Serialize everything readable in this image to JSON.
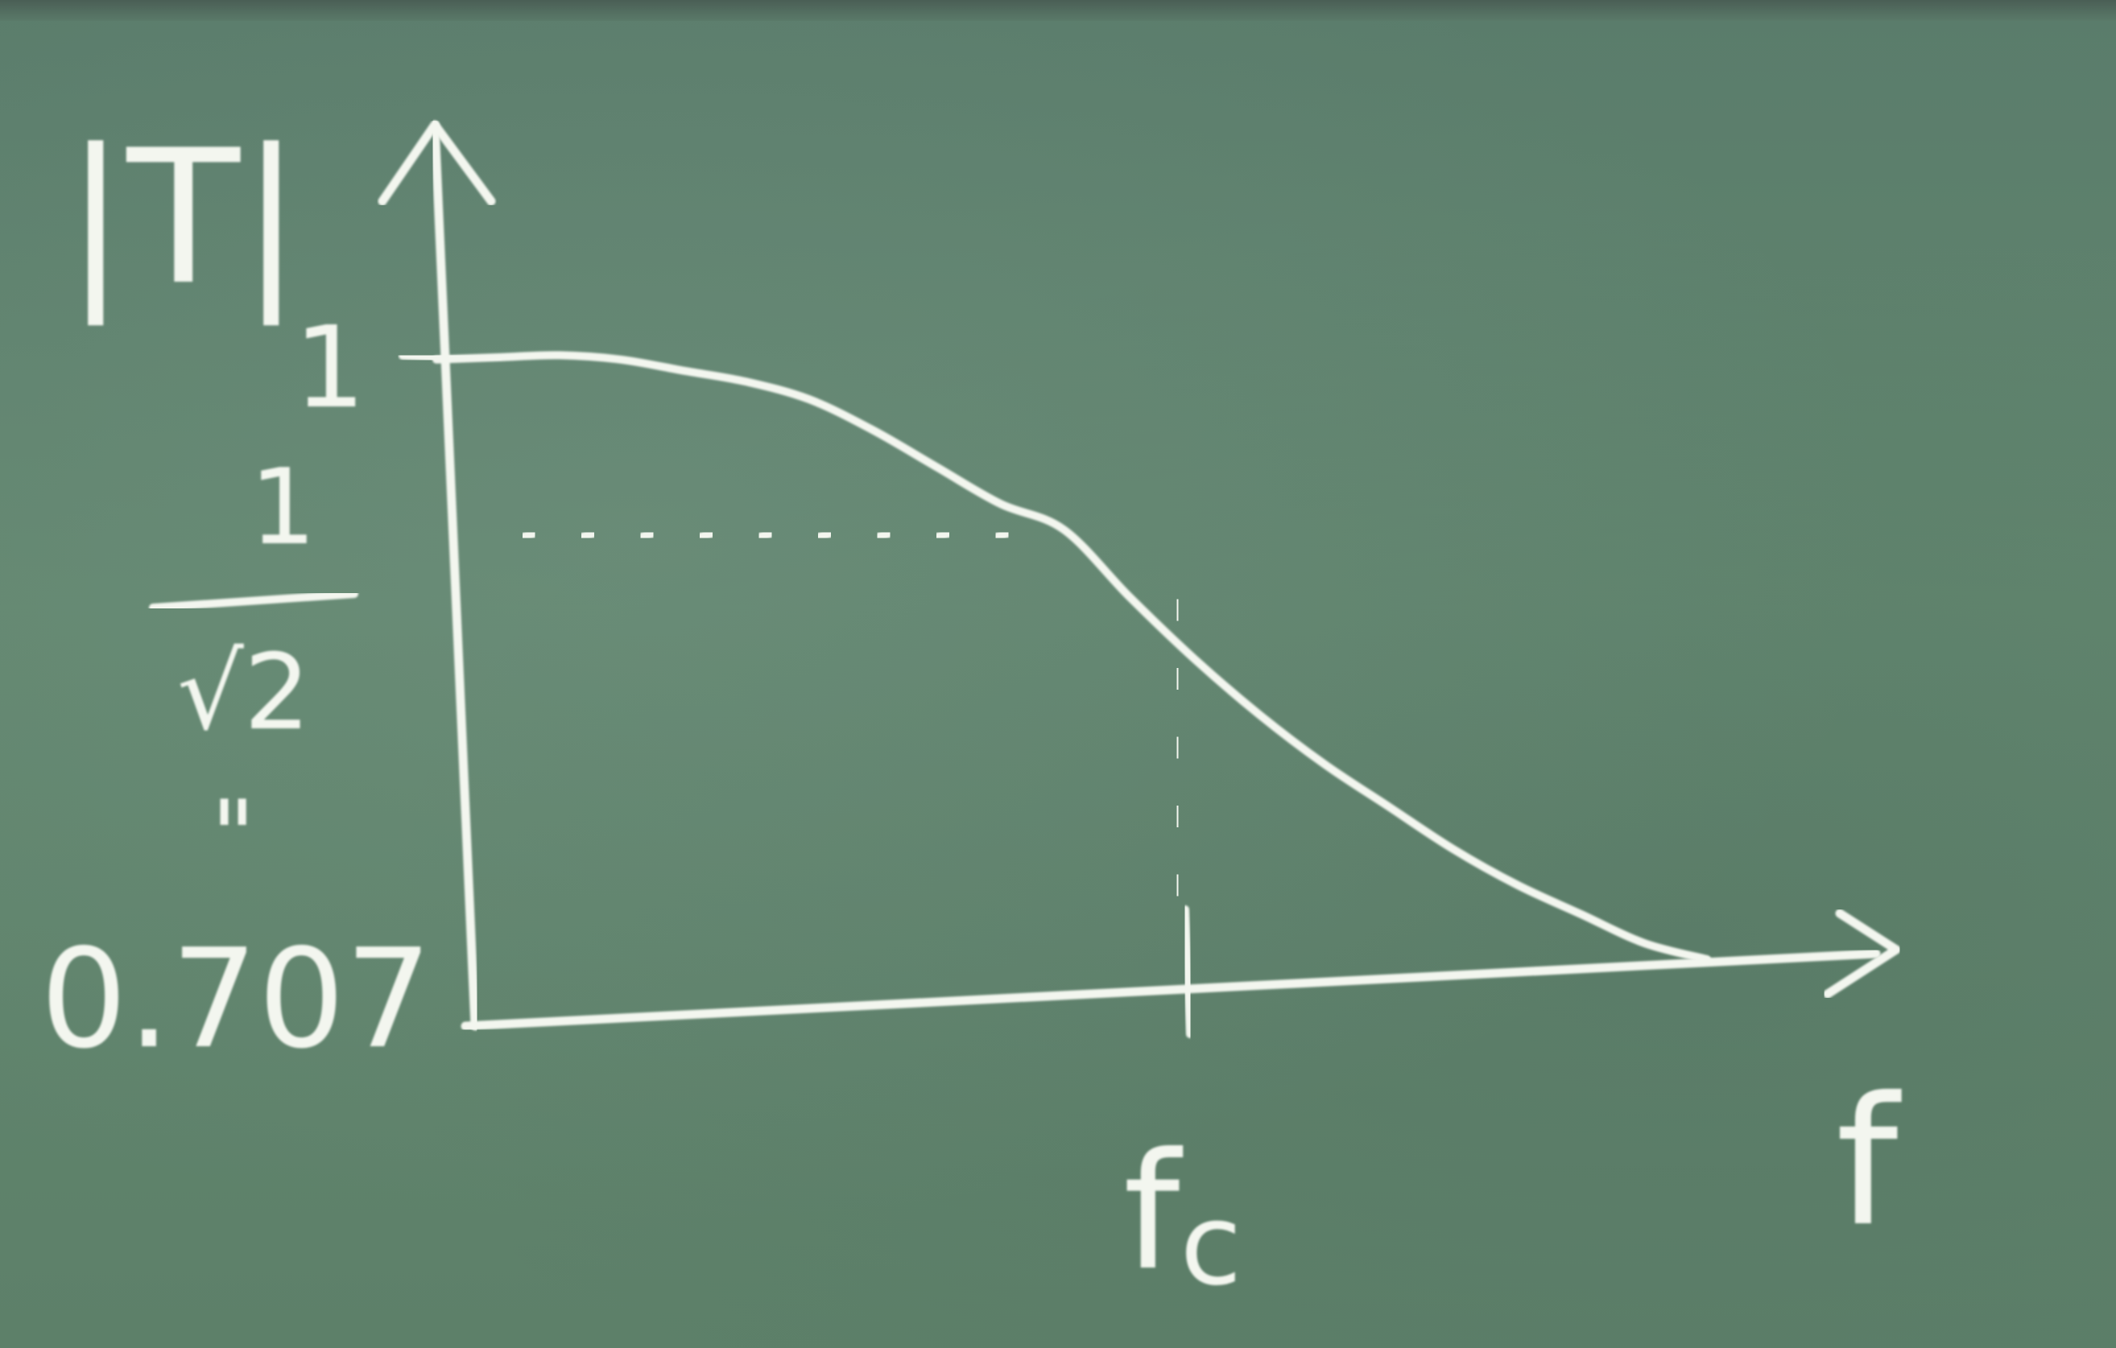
{
  "chart_data": {
    "type": "line",
    "title": "",
    "ylabel": "|T|",
    "xlabel": "f",
    "y_ticks": {
      "one": "1",
      "half_power_numerator": "1",
      "half_power_denominator": "√2",
      "half_power_equals": "\"",
      "half_power_decimal": "0.707"
    },
    "x_ticks": {
      "cutoff": "f",
      "cutoff_subscript": "c"
    },
    "x_range": [
      0,
      2.0
    ],
    "y_range": [
      0,
      1.15
    ],
    "cutoff_x": 1.0,
    "cutoff_y": 0.707,
    "series": [
      {
        "x": [
          0,
          0.1,
          0.2,
          0.3,
          0.4,
          0.5,
          0.6,
          0.7,
          0.8,
          0.9,
          1.0,
          1.1,
          1.2,
          1.3,
          1.4,
          1.5,
          1.6,
          1.7,
          1.8,
          1.9,
          2.0
        ],
        "y": [
          1.0,
          1.0,
          1.0,
          0.99,
          0.97,
          0.95,
          0.92,
          0.87,
          0.81,
          0.75,
          0.707,
          0.6,
          0.5,
          0.41,
          0.33,
          0.26,
          0.19,
          0.13,
          0.08,
          0.03,
          0.0
        ]
      }
    ],
    "grid": false,
    "legend": "none",
    "line_color": "#f3f6ef",
    "background_color": "#5f8270"
  }
}
